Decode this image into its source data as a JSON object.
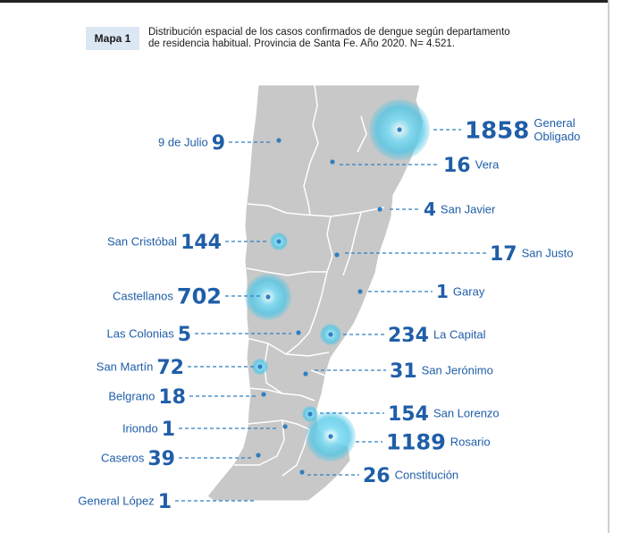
{
  "header": {
    "map_label": "Mapa 1",
    "caption_line1": "Distribución espacial de los casos confirmados de dengue según departamento",
    "caption_line2": "de residencia habitual. Provincia de Santa Fe. Año 2020. N= 4.521."
  },
  "colors": {
    "province_fill": "#c8c8c8",
    "bubble": "#5fd0ec",
    "label_text": "#1f5ea8",
    "leader": "#2f7fc0"
  },
  "departments": [
    {
      "name": "9 de Julio",
      "cases": "9",
      "side": "left"
    },
    {
      "name": "General Obligado",
      "cases": "1858",
      "side": "right"
    },
    {
      "name": "Vera",
      "cases": "16",
      "side": "right"
    },
    {
      "name": "San Javier",
      "cases": "4",
      "side": "right"
    },
    {
      "name": "San Cristóbal",
      "cases": "144",
      "side": "left"
    },
    {
      "name": "San Justo",
      "cases": "17",
      "side": "right"
    },
    {
      "name": "Castellanos",
      "cases": "702",
      "side": "left"
    },
    {
      "name": "Garay",
      "cases": "1",
      "side": "right"
    },
    {
      "name": "Las Colonias",
      "cases": "5",
      "side": "left"
    },
    {
      "name": "La Capital",
      "cases": "234",
      "side": "right"
    },
    {
      "name": "San Martín",
      "cases": "72",
      "side": "left"
    },
    {
      "name": "San Jerónimo",
      "cases": "31",
      "side": "right"
    },
    {
      "name": "Belgrano",
      "cases": "18",
      "side": "left"
    },
    {
      "name": "San Lorenzo",
      "cases": "154",
      "side": "right"
    },
    {
      "name": "Iriondo",
      "cases": "1",
      "side": "left"
    },
    {
      "name": "Rosario",
      "cases": "1189",
      "side": "right"
    },
    {
      "name": "Caseros",
      "cases": "39",
      "side": "left"
    },
    {
      "name": "Constitución",
      "cases": "26",
      "side": "right"
    },
    {
      "name": "General López",
      "cases": "1",
      "side": "left"
    }
  ]
}
